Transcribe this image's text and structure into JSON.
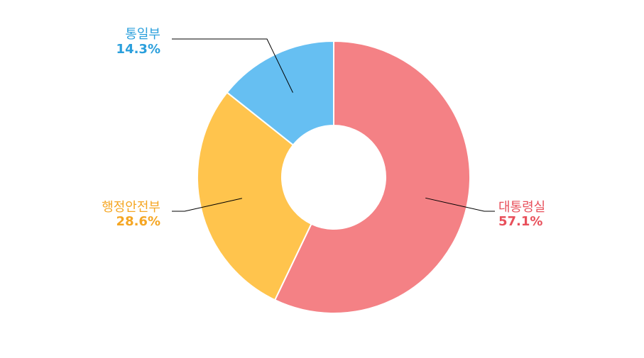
{
  "chart_data": {
    "type": "pie",
    "donut": true,
    "title": "",
    "slices": [
      {
        "label": "대통령실",
        "value": 57.1,
        "display": "57.1%",
        "color": "#f48185",
        "text_color": "#e8505b"
      },
      {
        "label": "행정안전부",
        "value": 28.6,
        "display": "28.6%",
        "color": "#ffc44d",
        "text_color": "#f5a623"
      },
      {
        "label": "통일부",
        "value": 14.3,
        "display": "14.3%",
        "color": "#66bff2",
        "text_color": "#2a9fdc"
      }
    ]
  }
}
